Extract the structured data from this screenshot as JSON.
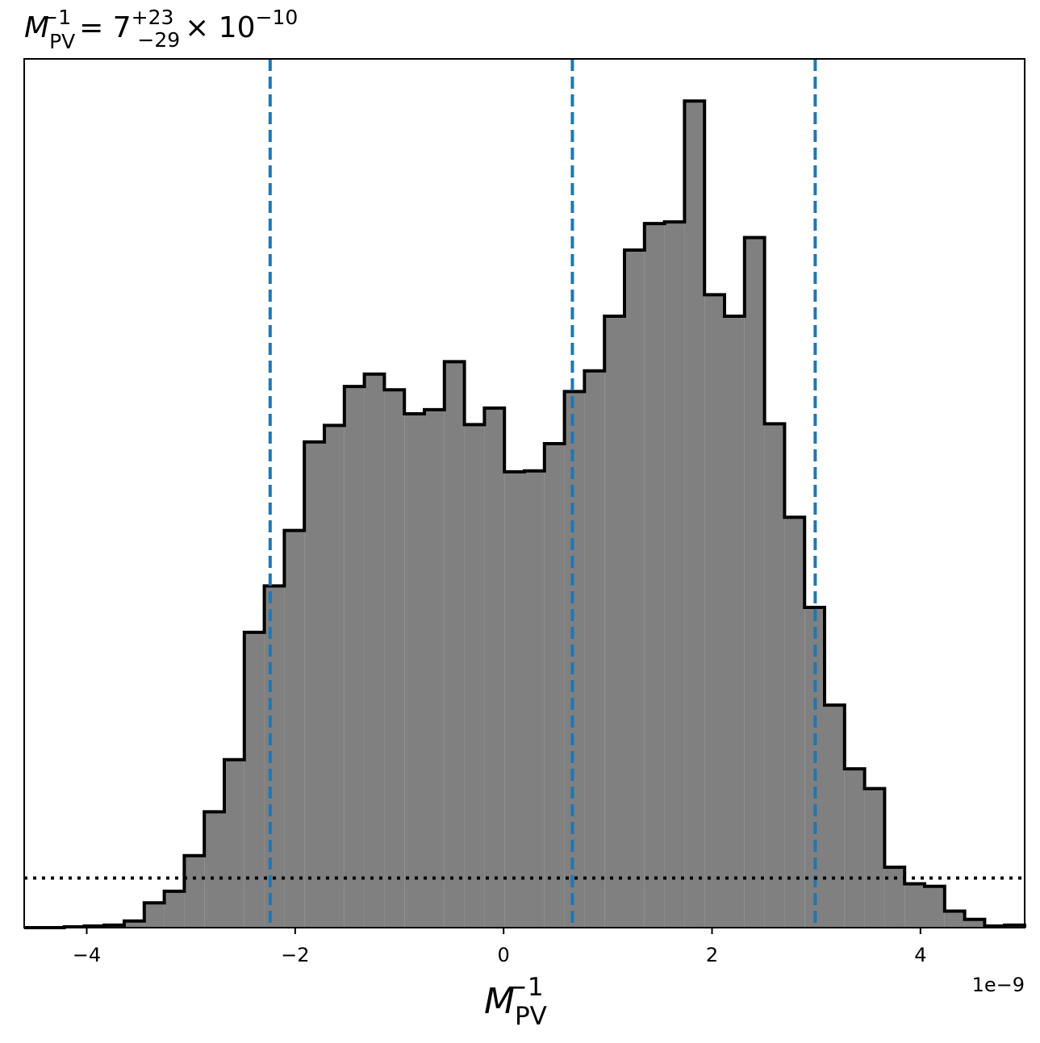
{
  "chart_data": {
    "type": "histogram",
    "title": {
      "base": "M",
      "sub": "PV",
      "sup": "−1",
      "value": "= 7",
      "upper": "+23",
      "lower": "−29",
      "times": "× 10",
      "exp": "−10"
    },
    "xlabel": {
      "base": "M",
      "sub": "PV",
      "sup": "−1"
    },
    "x_offset_label": "1e−9",
    "bins": [
      -4.6,
      -4.408,
      -4.216,
      -4.024,
      -3.832,
      -3.64,
      -3.448,
      -3.256,
      -3.064,
      -2.872,
      -2.68,
      -2.488,
      -2.296,
      -2.104,
      -1.912,
      -1.72,
      -1.528,
      -1.336,
      -1.144,
      -0.952,
      -0.76,
      -0.568,
      -0.376,
      -0.184,
      0.008,
      0.2,
      0.392,
      0.584,
      0.776,
      0.968,
      1.16,
      1.352,
      1.544,
      1.736,
      1.928,
      2.12,
      2.312,
      2.504,
      2.696,
      2.888,
      3.08,
      3.272,
      3.464,
      3.656,
      3.848,
      4.04,
      4.232,
      4.424,
      4.616,
      4.808,
      5.0
    ],
    "values": [
      0,
      0,
      0.001,
      0.002,
      0.003,
      0.008,
      0.03,
      0.044,
      0.087,
      0.14,
      0.203,
      0.357,
      0.413,
      0.48,
      0.587,
      0.607,
      0.654,
      0.669,
      0.65,
      0.621,
      0.626,
      0.684,
      0.608,
      0.628,
      0.551,
      0.552,
      0.585,
      0.648,
      0.673,
      0.739,
      0.819,
      0.851,
      0.853,
      0.999,
      0.765,
      0.739,
      0.834,
      0.609,
      0.496,
      0.387,
      0.269,
      0.192,
      0.168,
      0.073,
      0.053,
      0.05,
      0.02,
      0.01,
      0.002,
      0.003
    ],
    "color": "#808080",
    "edge_color": "#000000",
    "quantiles": [
      -2.24,
      0.66,
      2.99
    ],
    "quantile_color": "#1f77b4",
    "hline": 0.06,
    "xlim": [
      -4.6,
      5.0
    ],
    "ylim": [
      0,
      1.05
    ],
    "xticks": [
      {
        "value": -4,
        "label": "−4"
      },
      {
        "value": -2,
        "label": "−2"
      },
      0,
      2,
      4
    ]
  }
}
